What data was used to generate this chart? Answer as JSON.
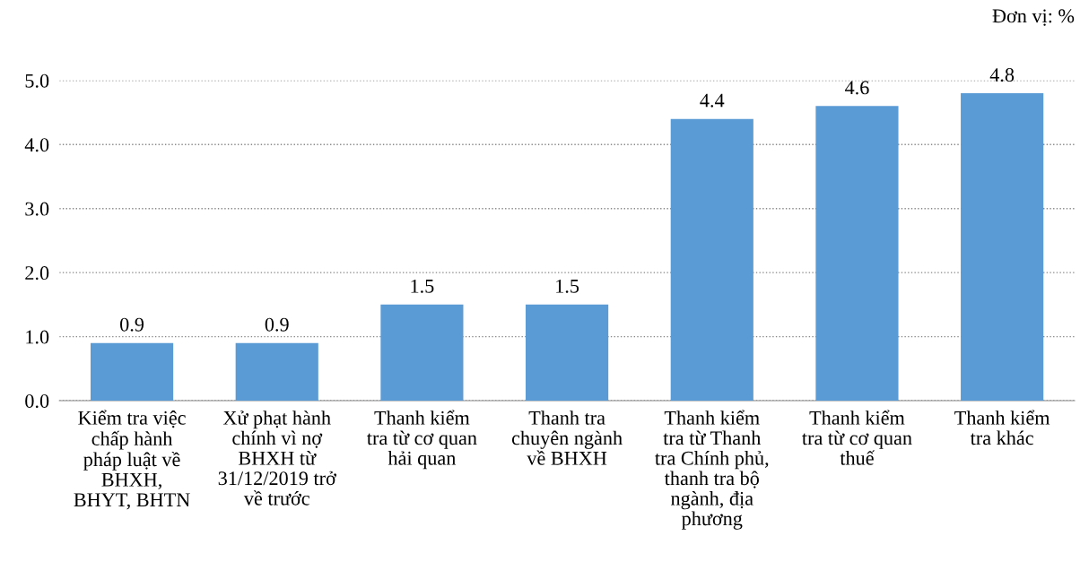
{
  "chart_data": {
    "type": "bar",
    "categories": [
      "Kiểm tra việc\nchấp hành\npháp luật về\nBHXH,\nBHYT, BHTN",
      "Xử phạt hành\nchính vì nợ\nBHXH từ\n31/12/2019 trở\nvề trước",
      "Thanh kiểm\ntra từ cơ quan\nhải quan",
      "Thanh tra\nchuyên ngành\nvề BHXH",
      "Thanh kiểm\ntra từ Thanh\ntra Chính phủ,\nthanh tra bộ\nngành, địa\nphương",
      "Thanh kiểm\ntra từ cơ quan\nthuế",
      "Thanh kiểm\ntra khác"
    ],
    "values": [
      0.9,
      0.9,
      1.5,
      1.5,
      4.4,
      4.6,
      4.8
    ],
    "color": "#5b9bd5",
    "ylim": [
      0,
      5
    ],
    "yticks": [
      {
        "value": 0,
        "label": "0.0"
      },
      {
        "value": 1,
        "label": "1.0"
      },
      {
        "value": 2,
        "label": "2.0"
      },
      {
        "value": 3,
        "label": "3.0"
      },
      {
        "value": 4,
        "label": "4.0"
      },
      {
        "value": 5,
        "label": "5.0"
      }
    ],
    "grid": "y",
    "data_labels": true,
    "annotations": [
      "Đơn vị: %"
    ]
  }
}
